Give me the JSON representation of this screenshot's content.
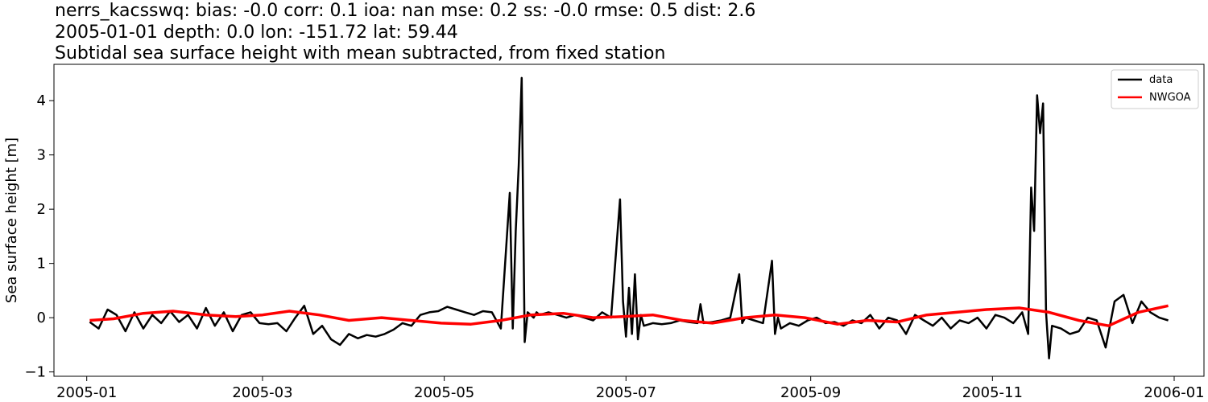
{
  "title": {
    "line1": "nerrs_kacsswq: bias: -0.0  corr: 0.1  ioa: nan  mse: 0.2  ss: -0.0  rmse: 0.5  dist: 2.6",
    "line2": "2005-01-01 depth: 0.0 lon: -151.72 lat: 59.44",
    "line3": "Subtidal sea surface height with mean subtracted, from fixed station"
  },
  "chart_data": {
    "type": "line",
    "title": "nerrs_kacsswq: bias: -0.0  corr: 0.1  ioa: nan  mse: 0.2  ss: -0.0  rmse: 0.5  dist: 2.6 / 2005-01-01 depth: 0.0 lon: -151.72 lat: 59.44 / Subtidal sea surface height with mean subtracted, from fixed station",
    "xlabel": "",
    "ylabel": "Sea surface height [m]",
    "xlim": [
      "2004-12-21",
      "2006-01-11"
    ],
    "ylim": [
      -1.08,
      4.67
    ],
    "x_ticks": [
      "2005-01",
      "2005-03",
      "2005-05",
      "2005-07",
      "2005-09",
      "2005-11",
      "2006-01"
    ],
    "y_ticks": [
      -1,
      0,
      1,
      2,
      3,
      4
    ],
    "grid": false,
    "legend": "top-right",
    "series": [
      {
        "name": "data",
        "color": "#000000",
        "x": [
          "2005-01-02",
          "2005-01-05",
          "2005-01-08",
          "2005-01-11",
          "2005-01-14",
          "2005-01-17",
          "2005-01-20",
          "2005-01-23",
          "2005-01-26",
          "2005-01-29",
          "2005-02-01",
          "2005-02-04",
          "2005-02-07",
          "2005-02-10",
          "2005-02-13",
          "2005-02-16",
          "2005-02-19",
          "2005-02-22",
          "2005-02-25",
          "2005-02-28",
          "2005-03-03",
          "2005-03-06",
          "2005-03-09",
          "2005-03-12",
          "2005-03-15",
          "2005-03-18",
          "2005-03-21",
          "2005-03-24",
          "2005-03-27",
          "2005-03-30",
          "2005-04-02",
          "2005-04-05",
          "2005-04-08",
          "2005-04-11",
          "2005-04-14",
          "2005-04-17",
          "2005-04-20",
          "2005-04-23",
          "2005-04-26",
          "2005-04-29",
          "2005-05-02",
          "2005-05-05",
          "2005-05-08",
          "2005-05-11",
          "2005-05-14",
          "2005-05-17",
          "2005-05-20",
          "2005-05-23",
          "2005-05-24",
          "2005-05-25",
          "2005-05-26",
          "2005-05-27",
          "2005-05-28",
          "2005-05-29",
          "2005-05-30",
          "2005-05-31",
          "2005-06-01",
          "2005-06-02",
          "2005-06-05",
          "2005-06-08",
          "2005-06-11",
          "2005-06-14",
          "2005-06-17",
          "2005-06-20",
          "2005-06-23",
          "2005-06-26",
          "2005-06-29",
          "2005-06-30",
          "2005-07-01",
          "2005-07-02",
          "2005-07-03",
          "2005-07-04",
          "2005-07-05",
          "2005-07-06",
          "2005-07-07",
          "2005-07-10",
          "2005-07-13",
          "2005-07-16",
          "2005-07-19",
          "2005-07-22",
          "2005-07-25",
          "2005-07-26",
          "2005-07-27",
          "2005-07-30",
          "2005-08-02",
          "2005-08-05",
          "2005-08-08",
          "2005-08-09",
          "2005-08-10",
          "2005-08-13",
          "2005-08-16",
          "2005-08-19",
          "2005-08-20",
          "2005-08-21",
          "2005-08-22",
          "2005-08-25",
          "2005-08-28",
          "2005-08-31",
          "2005-09-03",
          "2005-09-06",
          "2005-09-09",
          "2005-09-12",
          "2005-09-15",
          "2005-09-18",
          "2005-09-21",
          "2005-09-24",
          "2005-09-27",
          "2005-09-30",
          "2005-10-03",
          "2005-10-06",
          "2005-10-09",
          "2005-10-12",
          "2005-10-15",
          "2005-10-18",
          "2005-10-21",
          "2005-10-24",
          "2005-10-27",
          "2005-10-30",
          "2005-11-02",
          "2005-11-05",
          "2005-11-08",
          "2005-11-11",
          "2005-11-13",
          "2005-11-14",
          "2005-11-15",
          "2005-11-16",
          "2005-11-17",
          "2005-11-18",
          "2005-11-19",
          "2005-11-20",
          "2005-11-21",
          "2005-11-24",
          "2005-11-27",
          "2005-11-30",
          "2005-12-03",
          "2005-12-06",
          "2005-12-09",
          "2005-12-12",
          "2005-12-15",
          "2005-12-18",
          "2005-12-21",
          "2005-12-24",
          "2005-12-27",
          "2005-12-30"
        ],
        "y": [
          -0.08,
          -0.2,
          0.15,
          0.05,
          -0.25,
          0.1,
          -0.2,
          0.05,
          -0.1,
          0.12,
          -0.08,
          0.05,
          -0.2,
          0.18,
          -0.15,
          0.1,
          -0.25,
          0.05,
          0.1,
          -0.1,
          -0.12,
          -0.1,
          -0.25,
          0.0,
          0.22,
          -0.3,
          -0.15,
          -0.4,
          -0.5,
          -0.3,
          -0.38,
          -0.32,
          -0.35,
          -0.3,
          -0.22,
          -0.1,
          -0.15,
          0.05,
          0.1,
          0.12,
          0.2,
          0.15,
          0.1,
          0.05,
          0.12,
          0.1,
          -0.2,
          2.3,
          -0.2,
          1.6,
          2.8,
          4.42,
          -0.45,
          0.1,
          0.05,
          0.0,
          0.1,
          0.05,
          0.1,
          0.05,
          0.0,
          0.05,
          0.0,
          -0.05,
          0.1,
          0.0,
          2.18,
          0.3,
          -0.35,
          0.55,
          -0.3,
          0.8,
          -0.4,
          0.05,
          -0.15,
          -0.1,
          -0.12,
          -0.1,
          -0.05,
          -0.08,
          -0.1,
          0.25,
          -0.1,
          -0.08,
          -0.05,
          0.0,
          0.8,
          -0.1,
          0.0,
          -0.05,
          -0.1,
          1.05,
          -0.3,
          0.0,
          -0.2,
          -0.1,
          -0.15,
          -0.05,
          0.0,
          -0.1,
          -0.08,
          -0.15,
          -0.05,
          -0.1,
          0.05,
          -0.2,
          0.0,
          -0.05,
          -0.3,
          0.05,
          -0.05,
          -0.15,
          0.0,
          -0.2,
          -0.05,
          -0.1,
          0.0,
          -0.2,
          0.05,
          0.0,
          -0.1,
          0.1,
          -0.3,
          2.4,
          1.6,
          4.1,
          3.4,
          3.95,
          0.1,
          -0.75,
          -0.15,
          -0.2,
          -0.3,
          -0.25,
          0.0,
          -0.05,
          -0.55,
          0.3,
          0.42,
          -0.1,
          0.3,
          0.1,
          0.0,
          -0.05
        ]
      },
      {
        "name": "NWGOA",
        "color": "#ff0000",
        "x": [
          "2005-01-02",
          "2005-01-10",
          "2005-01-20",
          "2005-01-30",
          "2005-02-10",
          "2005-02-20",
          "2005-03-01",
          "2005-03-10",
          "2005-03-20",
          "2005-03-30",
          "2005-04-10",
          "2005-04-20",
          "2005-04-30",
          "2005-05-10",
          "2005-05-20",
          "2005-05-30",
          "2005-06-10",
          "2005-06-20",
          "2005-06-30",
          "2005-07-10",
          "2005-07-20",
          "2005-07-30",
          "2005-08-10",
          "2005-08-20",
          "2005-08-30",
          "2005-09-10",
          "2005-09-20",
          "2005-09-30",
          "2005-10-10",
          "2005-10-20",
          "2005-10-30",
          "2005-11-10",
          "2005-11-20",
          "2005-11-30",
          "2005-12-10",
          "2005-12-20",
          "2005-12-30"
        ],
        "y": [
          -0.05,
          -0.02,
          0.08,
          0.12,
          0.05,
          0.02,
          0.05,
          0.12,
          0.05,
          -0.05,
          0.0,
          -0.05,
          -0.1,
          -0.12,
          -0.05,
          0.05,
          0.08,
          0.0,
          0.02,
          0.05,
          -0.05,
          -0.1,
          0.0,
          0.05,
          0.0,
          -0.12,
          -0.05,
          -0.08,
          0.05,
          0.1,
          0.15,
          0.18,
          0.1,
          -0.05,
          -0.15,
          0.1,
          0.22
        ]
      }
    ]
  }
}
